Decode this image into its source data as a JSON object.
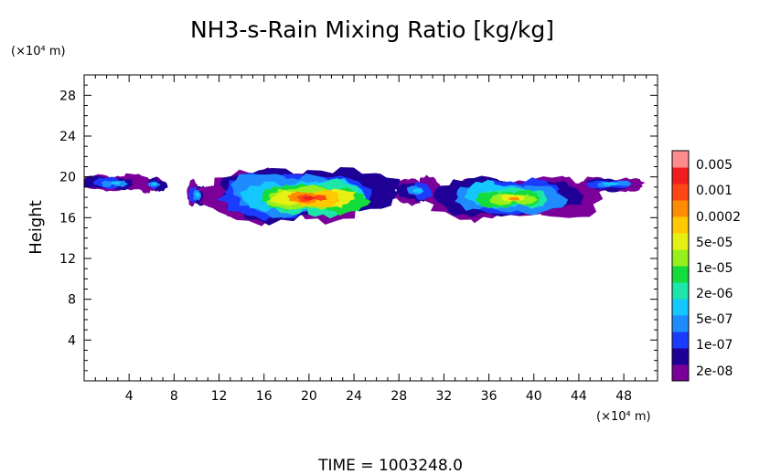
{
  "chart_data": {
    "type": "heatmap",
    "title": "NH3-s-Rain Mixing Ratio [kg/kg]",
    "xlabel": "",
    "ylabel": "Height",
    "x_unit": "(×10⁴ m)",
    "y_unit": "(×10⁴ m)",
    "xlim": [
      0,
      51
    ],
    "ylim": [
      0,
      30
    ],
    "xticks": [
      4,
      8,
      12,
      16,
      20,
      24,
      28,
      32,
      36,
      40,
      44,
      48
    ],
    "yticks": [
      4,
      8,
      12,
      16,
      20,
      24,
      28
    ],
    "legend_placement": "right",
    "colorbar": {
      "labels": [
        "0.005",
        "0.001",
        "0.0002",
        "5e-05",
        "1e-05",
        "2e-06",
        "5e-07",
        "1e-07",
        "2e-08"
      ],
      "colors": [
        "#7a0099",
        "#1e0096",
        "#1b3cff",
        "#1e8cff",
        "#14c8ff",
        "#1ee6aa",
        "#14dc3c",
        "#96f01e",
        "#e6f014",
        "#ffc800",
        "#ff8c00",
        "#ff4614",
        "#f01e1e",
        "#ff8c8c"
      ]
    },
    "structures": [
      {
        "x": [
          0.0,
          5.0
        ],
        "y": [
          18.5,
          20.2
        ],
        "level": "low"
      },
      {
        "x": [
          5.0,
          7.5
        ],
        "y": [
          18.6,
          20.0
        ],
        "level": "low"
      },
      {
        "x": [
          9.2,
          10.8
        ],
        "y": [
          17.0,
          19.6
        ],
        "level": "low"
      },
      {
        "x": [
          11.5,
          12.8
        ],
        "y": [
          17.8,
          19.2
        ],
        "level": "low"
      },
      {
        "x": [
          13.0,
          27.5
        ],
        "y": [
          16.0,
          20.5
        ],
        "level": "high"
      },
      {
        "x": [
          27.5,
          32.0
        ],
        "y": [
          17.5,
          19.8
        ],
        "level": "low"
      },
      {
        "x": [
          32.0,
          44.0
        ],
        "y": [
          16.3,
          20.0
        ],
        "level": "mid"
      },
      {
        "x": [
          44.0,
          50.5
        ],
        "y": [
          18.6,
          20.0
        ],
        "level": "low"
      }
    ],
    "footer": "TIME  =  1003248.0"
  }
}
